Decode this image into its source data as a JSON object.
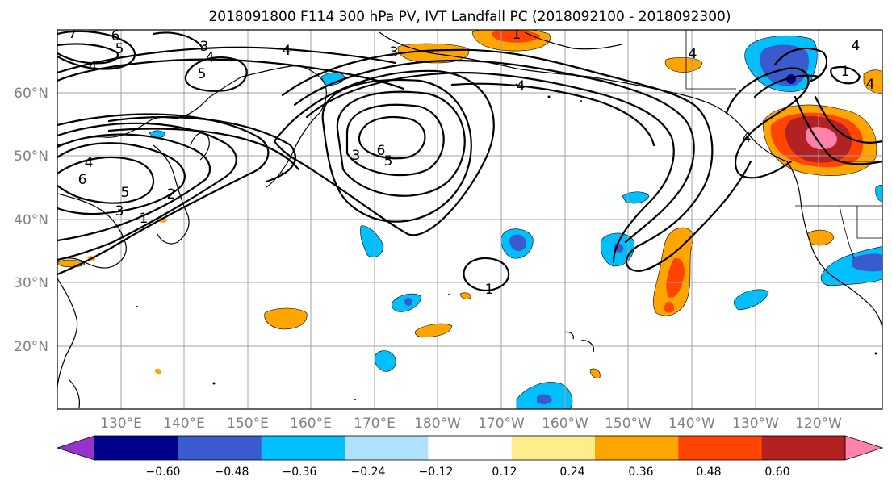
{
  "title": "2018091800 F114 300 hPa PV, IVT Landfall PC (2018092100 - 2018092300)",
  "map": {
    "lat_labels": [
      "60°N",
      "50°N",
      "40°N",
      "30°N",
      "20°N"
    ],
    "lon_labels": [
      "130°E",
      "140°E",
      "150°E",
      "160°E",
      "170°E",
      "180°W",
      "170°W",
      "160°W",
      "150°W",
      "140°W",
      "130°W",
      "120°W"
    ],
    "contour_labels": [
      "7",
      "6",
      "5",
      "4",
      "3",
      "5",
      "4",
      "3",
      "4",
      "1",
      "1",
      "4",
      "4",
      "6",
      "5",
      "3",
      "6",
      "4",
      "5",
      "3",
      "2",
      "1",
      "1",
      "4",
      "4",
      "4"
    ]
  },
  "colorbar": {
    "colors": [
      "#9932cc",
      "#00008b",
      "#3a5bcd",
      "#00bfff",
      "#b0e2ff",
      "#ffffff",
      "#ffec8b",
      "#ffa500",
      "#ff4500",
      "#b22222",
      "#ff82ab"
    ],
    "tick_labels": [
      "−0.60",
      "−0.48",
      "−0.36",
      "−0.24",
      "−0.12",
      "0.12",
      "0.24",
      "0.36",
      "0.48",
      "0.60"
    ]
  }
}
